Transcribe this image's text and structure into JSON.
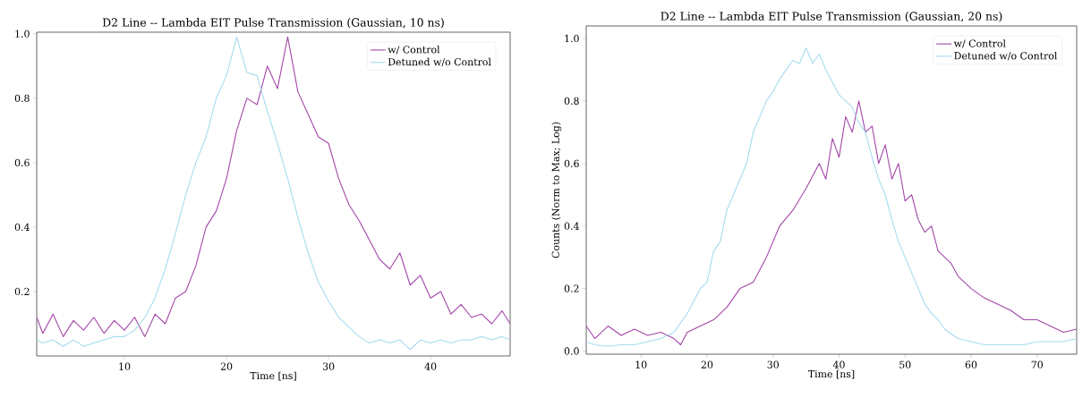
{
  "chart_data": [
    {
      "type": "line",
      "title": "D2 Line -- Lambda EIT Pulse Transmission (Gaussian, 10 ns)",
      "xlabel": "Time [ns]",
      "xlim": [
        1.4,
        47.8
      ],
      "ylim": [
        0.0,
        1.005
      ],
      "xticks": [
        10,
        20,
        30,
        40
      ],
      "yticks": [
        {
          "value": 0.2,
          "label": "0.2"
        },
        {
          "value": 0.4,
          "label": "0.4"
        },
        {
          "value": 0.6,
          "label": "0.6"
        },
        {
          "value": 0.8,
          "label": "0.8"
        },
        {
          "value": 1.0,
          "label": "1.0"
        }
      ],
      "legend": "top right",
      "series": [
        {
          "name": "w/ Control",
          "color": "#a346a8",
          "x": [
            1.4,
            2,
            3,
            4,
            5,
            6,
            7,
            8,
            9,
            10,
            11,
            12,
            13,
            14,
            15,
            16,
            17,
            18,
            19,
            20,
            21,
            22,
            23,
            24,
            25,
            26,
            27,
            28,
            29,
            30,
            31,
            32,
            33,
            34,
            35,
            36,
            37,
            38,
            39,
            40,
            41,
            42,
            43,
            44,
            45,
            46,
            47,
            47.8
          ],
          "values": [
            0.12,
            0.07,
            0.13,
            0.06,
            0.11,
            0.08,
            0.12,
            0.07,
            0.11,
            0.08,
            0.12,
            0.06,
            0.13,
            0.1,
            0.18,
            0.2,
            0.28,
            0.4,
            0.45,
            0.55,
            0.7,
            0.8,
            0.78,
            0.9,
            0.83,
            0.99,
            0.82,
            0.75,
            0.68,
            0.66,
            0.55,
            0.47,
            0.42,
            0.36,
            0.3,
            0.27,
            0.32,
            0.22,
            0.25,
            0.18,
            0.2,
            0.13,
            0.16,
            0.12,
            0.13,
            0.1,
            0.14,
            0.1
          ]
        },
        {
          "name": "Detuned w/o Control",
          "color": "#a6dcef",
          "x": [
            1.4,
            2,
            3,
            4,
            5,
            6,
            7,
            8,
            9,
            10,
            11,
            12,
            13,
            14,
            15,
            16,
            17,
            18,
            19,
            20,
            21,
            22,
            23,
            24,
            25,
            26,
            27,
            28,
            29,
            30,
            31,
            32,
            33,
            34,
            35,
            36,
            37,
            38,
            39,
            40,
            41,
            42,
            43,
            44,
            45,
            46,
            47,
            47.8
          ],
          "values": [
            0.05,
            0.04,
            0.05,
            0.03,
            0.05,
            0.03,
            0.04,
            0.05,
            0.06,
            0.06,
            0.08,
            0.12,
            0.18,
            0.27,
            0.38,
            0.5,
            0.6,
            0.68,
            0.8,
            0.87,
            0.99,
            0.88,
            0.87,
            0.76,
            0.66,
            0.55,
            0.43,
            0.32,
            0.23,
            0.17,
            0.12,
            0.09,
            0.06,
            0.04,
            0.05,
            0.04,
            0.05,
            0.02,
            0.05,
            0.04,
            0.05,
            0.04,
            0.05,
            0.05,
            0.06,
            0.05,
            0.06,
            0.05
          ]
        }
      ]
    },
    {
      "type": "line",
      "title": "D2 Line -- Lambda EIT Pulse Transmission (Gaussian, 20 ns)",
      "xlabel": "Time [ns]",
      "ylabel": "Counts (Norm to Max; Log)",
      "xlim": [
        1.7,
        76
      ],
      "ylim": [
        -0.01,
        1.04
      ],
      "xticks": [
        10,
        20,
        30,
        40,
        50,
        60,
        70
      ],
      "yticks": [
        {
          "value": 0.0,
          "label": "0.0"
        },
        {
          "value": 0.2,
          "label": "0.2"
        },
        {
          "value": 0.4,
          "label": "0.4"
        },
        {
          "value": 0.6,
          "label": "0.6"
        },
        {
          "value": 0.8,
          "label": "0.8"
        },
        {
          "value": 1.0,
          "label": "1.0"
        }
      ],
      "legend": "top right",
      "series": [
        {
          "name": "w/ Control",
          "color": "#a346a8",
          "x": [
            1.7,
            3,
            5,
            7,
            9,
            11,
            13,
            15,
            16,
            17,
            19,
            21,
            23,
            25,
            27,
            29,
            31,
            33,
            35,
            37,
            38,
            39,
            40,
            41,
            42,
            43,
            44,
            45,
            46,
            47,
            48,
            49,
            50,
            51,
            52,
            53,
            54,
            55,
            56,
            57,
            58,
            59,
            60,
            62,
            64,
            66,
            68,
            70,
            72,
            74,
            76
          ],
          "values": [
            0.08,
            0.04,
            0.08,
            0.05,
            0.07,
            0.05,
            0.06,
            0.04,
            0.02,
            0.06,
            0.08,
            0.1,
            0.14,
            0.2,
            0.22,
            0.3,
            0.4,
            0.45,
            0.52,
            0.6,
            0.55,
            0.68,
            0.62,
            0.75,
            0.7,
            0.8,
            0.7,
            0.72,
            0.6,
            0.66,
            0.55,
            0.6,
            0.48,
            0.5,
            0.42,
            0.38,
            0.4,
            0.32,
            0.3,
            0.28,
            0.24,
            0.22,
            0.2,
            0.17,
            0.15,
            0.13,
            0.1,
            0.1,
            0.08,
            0.06,
            0.07
          ]
        },
        {
          "name": "Detuned w/o Control",
          "color": "#a6dcef",
          "x": [
            1.7,
            3,
            5,
            7,
            9,
            11,
            13,
            15,
            17,
            19,
            20,
            21,
            22,
            23,
            24,
            25,
            26,
            27,
            28,
            29,
            30,
            31,
            32,
            33,
            34,
            35,
            36,
            37,
            38,
            39,
            40,
            41,
            42,
            43,
            44,
            45,
            46,
            47,
            48,
            49,
            50,
            51,
            52,
            53,
            54,
            55,
            56,
            58,
            60,
            62,
            64,
            66,
            68,
            70,
            72,
            74,
            76
          ],
          "values": [
            0.03,
            0.02,
            0.015,
            0.02,
            0.02,
            0.03,
            0.04,
            0.06,
            0.12,
            0.2,
            0.22,
            0.32,
            0.35,
            0.45,
            0.5,
            0.55,
            0.6,
            0.7,
            0.75,
            0.8,
            0.83,
            0.87,
            0.9,
            0.93,
            0.92,
            0.97,
            0.92,
            0.95,
            0.9,
            0.86,
            0.82,
            0.8,
            0.78,
            0.73,
            0.7,
            0.62,
            0.55,
            0.5,
            0.42,
            0.35,
            0.3,
            0.25,
            0.2,
            0.15,
            0.12,
            0.1,
            0.07,
            0.04,
            0.03,
            0.02,
            0.02,
            0.02,
            0.02,
            0.03,
            0.03,
            0.03,
            0.04
          ]
        }
      ]
    }
  ]
}
